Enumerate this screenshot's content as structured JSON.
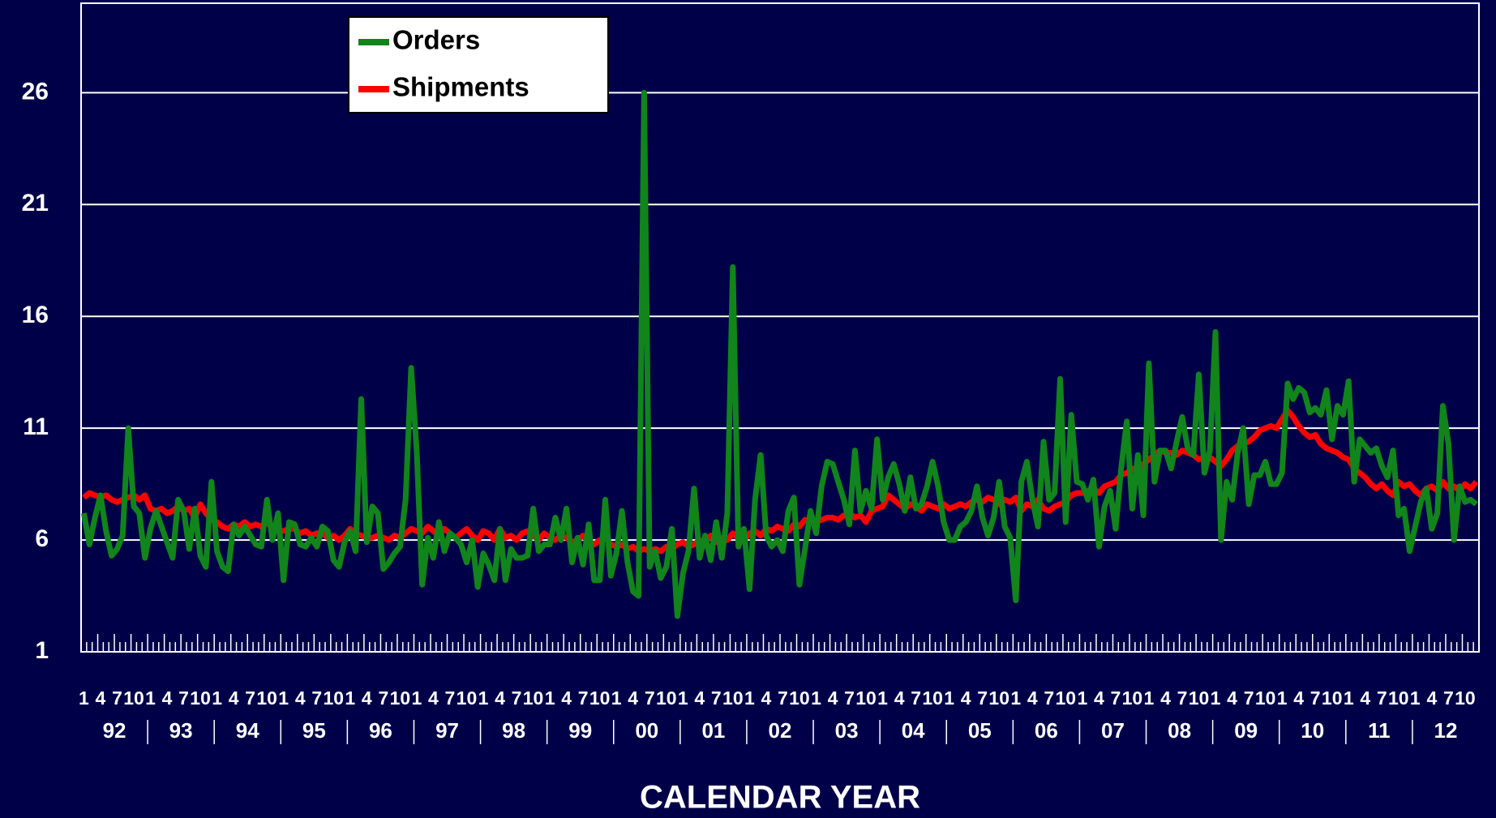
{
  "chart_data": {
    "type": "line",
    "x_label": "CALENDAR YEAR",
    "categories": [
      "1",
      null,
      null,
      "4",
      null,
      null,
      "7",
      null,
      null,
      "10",
      null,
      null,
      "1",
      null,
      null,
      "4",
      null,
      null,
      "7",
      null,
      null,
      "10",
      null,
      null,
      "1",
      null,
      null,
      "4",
      null,
      null,
      "7",
      null,
      null,
      "10",
      null,
      null,
      "1",
      null,
      null,
      "4",
      null,
      null,
      "7",
      null,
      null,
      "10",
      null,
      null,
      "1",
      null,
      null,
      "4",
      null,
      null,
      "7",
      null,
      null,
      "10",
      null,
      null,
      "1",
      null,
      null,
      "4",
      null,
      null,
      "7",
      null,
      null,
      "10",
      null,
      null,
      "1",
      null,
      null,
      "4",
      null,
      null,
      "7",
      null,
      null,
      "10",
      null,
      null,
      "1",
      null,
      null,
      "4",
      null,
      null,
      "7",
      null,
      null,
      "10",
      null,
      null,
      "1",
      null,
      null,
      "4",
      null,
      null,
      "7",
      null,
      null,
      "10",
      null,
      null,
      "1",
      null,
      null,
      "4",
      null,
      null,
      "7",
      null,
      null,
      "10",
      null,
      null,
      "1",
      null,
      null,
      "4",
      null,
      null,
      "7",
      null,
      null,
      "10",
      null,
      null,
      "1",
      null,
      null,
      "4",
      null,
      null,
      "7",
      null,
      null,
      "10",
      null,
      null,
      "1",
      null,
      null,
      "4",
      null,
      null,
      "7",
      null,
      null,
      "10",
      null,
      null,
      "1",
      null,
      null,
      "4",
      null,
      null,
      "7",
      null,
      null,
      "10",
      null,
      null,
      "1",
      null,
      null,
      "4",
      null,
      null,
      "7",
      null,
      null,
      "10",
      null,
      null,
      "1",
      null,
      null,
      "4",
      null,
      null,
      "7",
      null,
      null,
      "10",
      null,
      null,
      "1",
      null,
      null,
      "4",
      null,
      null,
      "7",
      null,
      null,
      "10",
      null,
      null,
      "1",
      null,
      null,
      "4",
      null,
      null,
      "7",
      null,
      null,
      "10",
      null,
      null,
      "1",
      null,
      null,
      "4",
      null,
      null,
      "7",
      null,
      null,
      "10",
      null,
      null,
      "1",
      null,
      null,
      "4",
      null,
      null,
      "7",
      null,
      null,
      "10",
      null,
      null,
      "1",
      null,
      null,
      "4",
      null,
      null,
      "7",
      null,
      null,
      "10",
      null,
      null
    ],
    "years": [
      "92",
      "93",
      "94",
      "95",
      "96",
      "97",
      "98",
      "99",
      "00",
      "01",
      "02",
      "03",
      "04",
      "05",
      "06",
      "07",
      "08",
      "09",
      "10",
      "11",
      "12"
    ],
    "series": [
      {
        "name": "Orders",
        "color": "#11841b",
        "values": [
          7.2,
          5.8,
          7.0,
          8.0,
          6.4,
          5.3,
          5.6,
          6.2,
          11.0,
          7.5,
          7.2,
          5.2,
          6.5,
          7.3,
          6.6,
          5.9,
          5.2,
          7.8,
          7.3,
          5.6,
          7.4,
          5.3,
          4.8,
          8.6,
          5.5,
          4.8,
          4.6,
          6.7,
          6.2,
          6.6,
          6.2,
          5.8,
          5.7,
          7.8,
          6.0,
          7.2,
          4.2,
          6.8,
          6.7,
          5.8,
          5.7,
          6.1,
          5.7,
          6.6,
          6.4,
          5.1,
          4.8,
          5.9,
          6.4,
          5.5,
          12.3,
          5.9,
          7.5,
          7.2,
          4.7,
          5.0,
          5.4,
          5.7,
          7.8,
          13.7,
          10.0,
          4.0,
          6.1,
          5.2,
          6.8,
          5.5,
          6.3,
          6.1,
          5.8,
          5.0,
          6.0,
          3.9,
          5.4,
          4.9,
          4.2,
          6.5,
          4.2,
          5.6,
          5.2,
          5.2,
          5.3,
          7.4,
          5.5,
          5.8,
          5.8,
          7.0,
          6.0,
          7.4,
          5.0,
          6.1,
          4.9,
          6.7,
          4.2,
          4.2,
          7.8,
          4.4,
          5.4,
          7.3,
          5.0,
          3.7,
          3.5,
          26.0,
          4.8,
          5.5,
          4.3,
          4.8,
          6.5,
          2.6,
          4.5,
          5.5,
          8.3,
          5.2,
          6.2,
          5.1,
          6.8,
          5.2,
          7.2,
          18.2,
          5.7,
          6.5,
          3.8,
          7.8,
          9.8,
          6.2,
          5.7,
          6.0,
          5.5,
          7.3,
          7.9,
          4.0,
          5.6,
          7.3,
          6.3,
          8.4,
          9.5,
          9.4,
          8.6,
          7.8,
          6.7,
          10.0,
          7.3,
          8.2,
          7.4,
          10.5,
          7.8,
          8.8,
          9.4,
          8.5,
          7.3,
          8.8,
          7.4,
          7.6,
          8.4,
          9.5,
          8.4,
          6.8,
          6.0,
          6.0,
          6.6,
          6.8,
          7.3,
          8.4,
          7.0,
          6.2,
          7.0,
          8.6,
          6.6,
          6.1,
          3.3,
          8.6,
          9.5,
          7.8,
          6.6,
          10.4,
          7.8,
          8.1,
          13.2,
          6.8,
          11.6,
          8.6,
          8.5,
          7.8,
          8.7,
          5.7,
          7.5,
          8.2,
          6.5,
          9.2,
          11.3,
          7.4,
          9.8,
          7.1,
          13.9,
          8.6,
          10.0,
          10.0,
          9.2,
          10.4,
          11.5,
          10.1,
          9.8,
          13.4,
          9.0,
          10.0,
          15.3,
          6.0,
          8.6,
          7.8,
          9.9,
          11.0,
          7.6,
          8.9,
          8.9,
          9.5,
          8.5,
          8.5,
          9.0,
          13.0,
          12.3,
          12.8,
          12.6,
          11.7,
          11.9,
          11.6,
          12.7,
          10.5,
          12.0,
          11.6,
          13.1,
          8.6,
          10.5,
          10.2,
          9.9,
          10.1,
          9.3,
          8.8,
          10.0,
          7.1,
          7.4,
          5.5,
          6.6,
          7.7,
          8.3,
          6.5,
          7.2,
          12.0,
          10.3,
          6.0,
          8.4,
          7.7,
          7.8,
          7.6
        ]
      },
      {
        "name": "Shipments",
        "color": "#ff0000",
        "values": [
          7.9,
          8.1,
          8.0,
          7.9,
          8.0,
          7.8,
          7.7,
          7.8,
          7.9,
          8.0,
          7.8,
          8.0,
          7.4,
          7.3,
          7.4,
          7.2,
          7.3,
          7.5,
          7.3,
          7.4,
          7.0,
          7.6,
          7.2,
          6.9,
          6.8,
          6.6,
          6.5,
          6.7,
          6.6,
          6.8,
          6.6,
          6.7,
          6.6,
          6.8,
          6.5,
          6.4,
          6.4,
          6.5,
          6.5,
          6.3,
          6.4,
          6.2,
          6.3,
          6.3,
          6.1,
          6.2,
          6.0,
          6.2,
          6.5,
          6.3,
          6.2,
          6.1,
          6.1,
          6.2,
          6.1,
          6.0,
          6.2,
          6.1,
          6.3,
          6.5,
          6.4,
          6.3,
          6.6,
          6.4,
          6.2,
          6.5,
          6.3,
          6.1,
          6.3,
          6.5,
          6.2,
          6.0,
          6.4,
          6.3,
          6.0,
          6.5,
          6.1,
          6.2,
          6.0,
          6.3,
          6.4,
          6.2,
          6.0,
          6.3,
          6.1,
          6.0,
          6.2,
          6.1,
          5.9,
          6.0,
          6.2,
          5.9,
          5.8,
          6.0,
          6.1,
          5.8,
          5.7,
          5.8,
          5.6,
          5.7,
          5.5,
          5.6,
          5.5,
          5.6,
          5.5,
          5.7,
          5.6,
          5.8,
          5.9,
          5.7,
          5.8,
          6.0,
          5.9,
          6.2,
          5.9,
          6.1,
          6.0,
          6.3,
          6.1,
          6.0,
          6.3,
          6.4,
          6.2,
          6.5,
          6.4,
          6.6,
          6.5,
          6.4,
          6.7,
          6.6,
          6.9,
          6.8,
          6.8,
          6.9,
          7.0,
          7.0,
          6.9,
          7.1,
          7.2,
          7.0,
          7.1,
          6.8,
          7.3,
          7.4,
          7.5,
          8.0,
          7.8,
          7.6,
          7.4,
          7.6,
          7.5,
          7.3,
          7.6,
          7.5,
          7.4,
          7.6,
          7.4,
          7.5,
          7.6,
          7.5,
          7.7,
          7.8,
          7.7,
          7.9,
          7.8,
          7.6,
          7.8,
          7.7,
          7.9,
          7.3,
          7.6,
          7.5,
          7.8,
          7.4,
          7.3,
          7.5,
          7.6,
          7.7,
          8.0,
          8.1,
          8.1,
          8.2,
          8.3,
          8.1,
          8.4,
          8.5,
          8.6,
          8.9,
          9.0,
          9.2,
          9.0,
          9.4,
          9.6,
          9.8,
          10.0,
          9.9,
          9.9,
          9.8,
          10.0,
          9.9,
          9.8,
          9.6,
          9.7,
          9.7,
          9.5,
          9.3,
          9.6,
          10.0,
          10.2,
          10.3,
          10.4,
          10.6,
          10.9,
          11.0,
          11.1,
          11.0,
          11.4,
          11.8,
          11.5,
          11.1,
          10.8,
          10.6,
          10.7,
          10.3,
          10.1,
          10.0,
          9.9,
          9.7,
          9.6,
          9.2,
          9.0,
          8.8,
          8.5,
          8.3,
          8.5,
          8.2,
          8.0,
          8.6,
          8.4,
          8.5,
          8.2,
          8.0,
          8.3,
          8.4,
          8.2,
          8.6,
          8.3,
          8.4,
          8.2,
          8.5,
          8.3,
          8.6
        ]
      }
    ],
    "ylim": [
      1,
      30
    ],
    "yticks": [
      1,
      6,
      11,
      16,
      21,
      26
    ],
    "grid": true,
    "legend": "top-left"
  }
}
